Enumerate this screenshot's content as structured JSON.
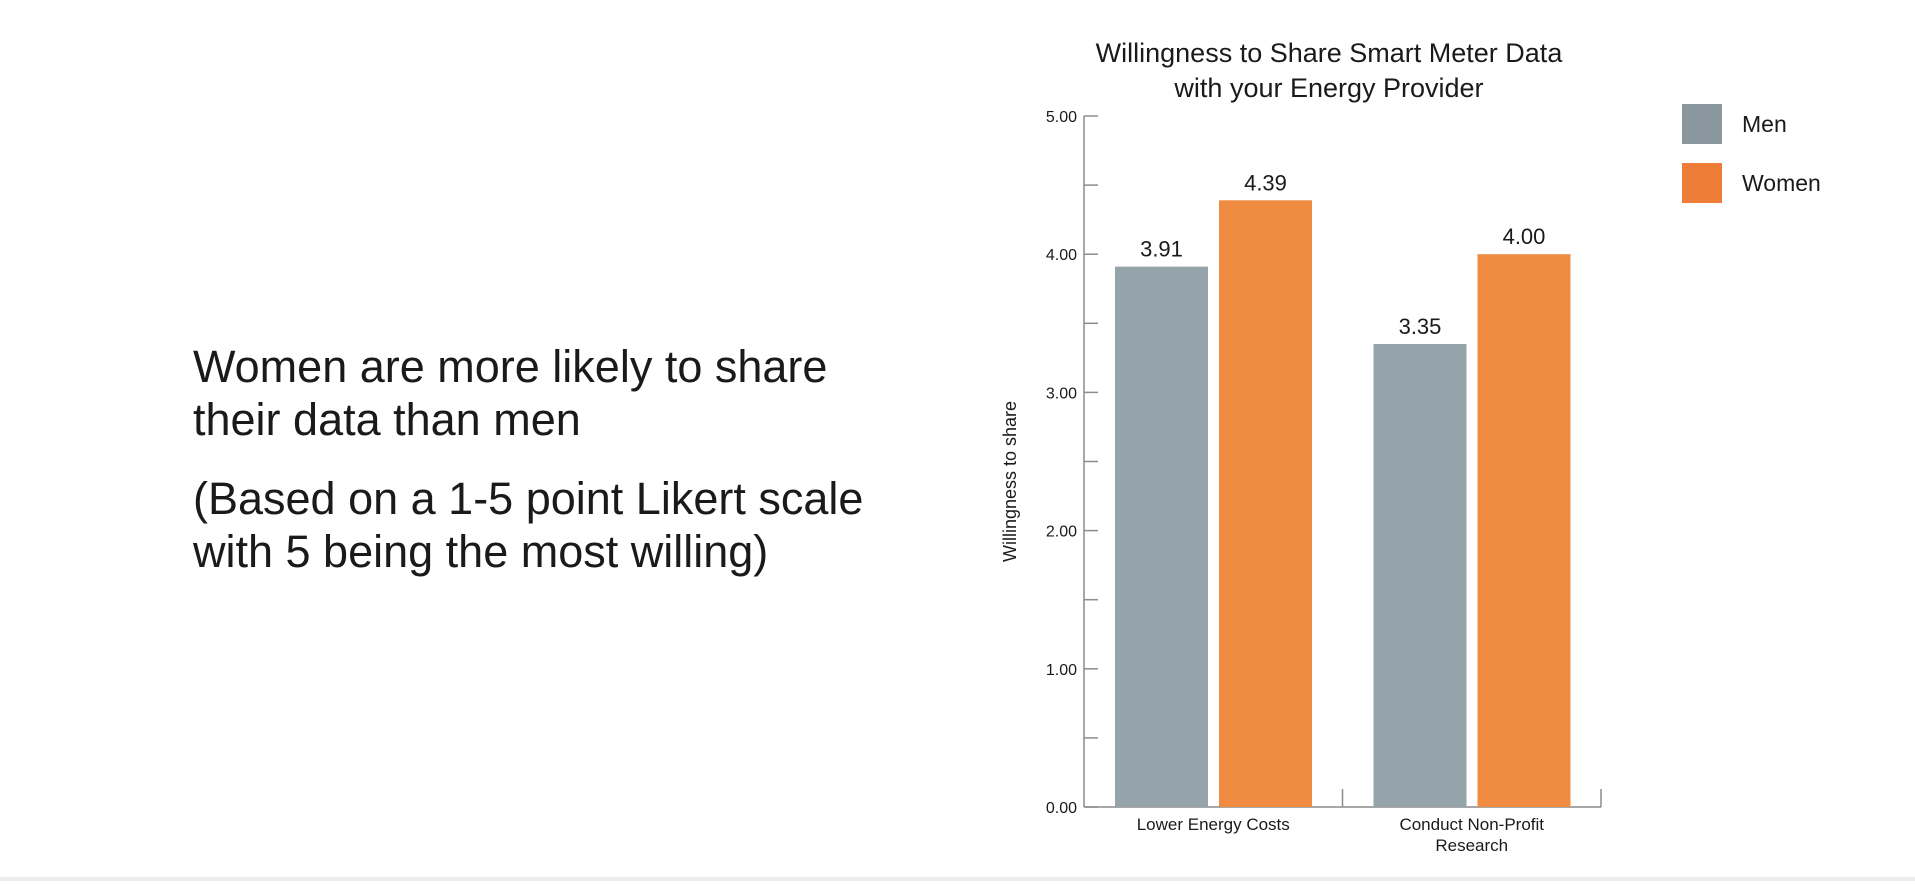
{
  "slide": {
    "headline": "Women are more likely to share their data than men",
    "note": "(Based on a 1-5 point Likert scale with 5 being the most willing)"
  },
  "chart_data": {
    "type": "bar",
    "title_lines": [
      "Willingness to Share Smart Meter Data",
      "with your Energy Provider"
    ],
    "ylabel": "Willingness to share",
    "xlabel": "",
    "ylim": [
      0,
      5
    ],
    "yticks": [
      "0.00",
      "1.00",
      "2.00",
      "3.00",
      "4.00",
      "5.00"
    ],
    "categories": [
      {
        "label_lines": [
          "Lower Energy Costs"
        ]
      },
      {
        "label_lines": [
          "Conduct Non-Profit",
          "Research"
        ]
      }
    ],
    "series": [
      {
        "name": "Men",
        "values": [
          3.91,
          3.35
        ],
        "labels": [
          "3.91",
          "3.35"
        ]
      },
      {
        "name": "Women",
        "values": [
          4.39,
          4.0
        ],
        "labels": [
          "4.39",
          "4.00"
        ]
      }
    ],
    "legend_position": "top-right",
    "colors": {
      "Men": "#95a3aa",
      "Women": "#f08c42",
      "legend_Men": "#8a979e",
      "legend_Women": "#ee7d37",
      "axis": "#8c8c8c"
    },
    "grid": false
  }
}
